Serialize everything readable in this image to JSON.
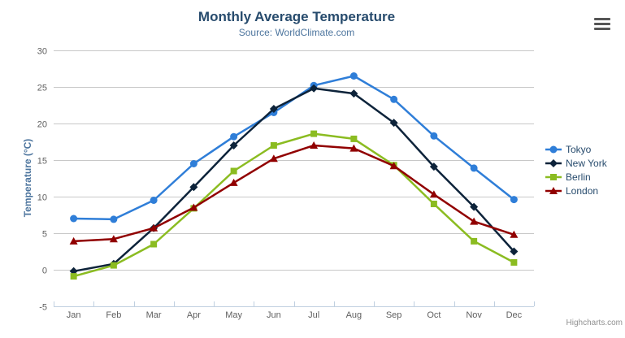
{
  "chart_data": {
    "type": "line",
    "title": "Monthly Average Temperature",
    "subtitle": "Source: WorldClimate.com",
    "categories": [
      "Jan",
      "Feb",
      "Mar",
      "Apr",
      "May",
      "Jun",
      "Jul",
      "Aug",
      "Sep",
      "Oct",
      "Nov",
      "Dec"
    ],
    "xlabel": "",
    "ylabel": "Temperature (°C)",
    "ylim": [
      -5,
      30
    ],
    "ytick_interval": 5,
    "grid": true,
    "legend_position": "right",
    "series": [
      {
        "name": "Tokyo",
        "color": "#2f7ed8",
        "marker": "circle",
        "values": [
          7.0,
          6.9,
          9.5,
          14.5,
          18.2,
          21.5,
          25.2,
          26.5,
          23.3,
          18.3,
          13.9,
          9.6
        ]
      },
      {
        "name": "New York",
        "color": "#0d233a",
        "marker": "diamond",
        "values": [
          -0.2,
          0.8,
          5.7,
          11.3,
          17.0,
          22.0,
          24.8,
          24.1,
          20.1,
          14.1,
          8.6,
          2.5
        ]
      },
      {
        "name": "Berlin",
        "color": "#8bbc21",
        "marker": "square",
        "values": [
          -0.9,
          0.6,
          3.5,
          8.4,
          13.5,
          17.0,
          18.6,
          17.9,
          14.3,
          9.0,
          3.9,
          1.0
        ]
      },
      {
        "name": "London",
        "color": "#910000",
        "marker": "triangle",
        "values": [
          3.9,
          4.2,
          5.7,
          8.5,
          11.9,
          15.2,
          17.0,
          16.6,
          14.2,
          10.3,
          6.6,
          4.8
        ]
      }
    ],
    "theme": {
      "title_color": "#274b6d",
      "subtitle_color": "#4d759e",
      "axis_title_color": "#4d759e",
      "axis_label_color": "#606060",
      "gridline_color": "#c8c8c8",
      "axis_line_color": "#c0d0e0",
      "legend_text_color": "#274b6d"
    }
  },
  "credits": "Highcharts.com",
  "icons": {
    "context_menu": "hamburger-icon"
  }
}
